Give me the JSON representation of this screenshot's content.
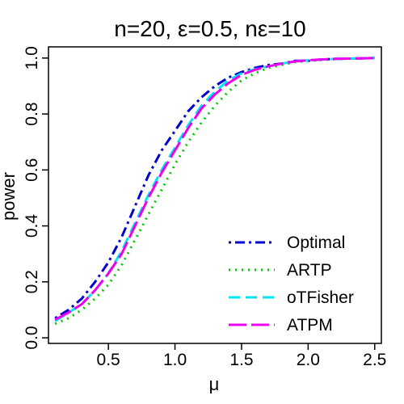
{
  "chart_data": {
    "type": "line",
    "title": "n=20, ε=0.5, nε=10",
    "xlabel": "μ",
    "ylabel": "power",
    "xlim": [
      0.05,
      2.55
    ],
    "ylim": [
      -0.02,
      1.04
    ],
    "xticks": [
      0.5,
      1.0,
      1.5,
      2.0,
      2.5
    ],
    "xtick_labels": [
      "0.5",
      "1.0",
      "1.5",
      "2.0",
      "2.5"
    ],
    "yticks": [
      0.0,
      0.2,
      0.4,
      0.6,
      0.8,
      1.0
    ],
    "ytick_labels": [
      "0.0",
      "0.2",
      "0.4",
      "0.6",
      "0.8",
      "1.0"
    ],
    "grid": false,
    "legend_position": "bottom-right",
    "x": [
      0.1,
      0.2,
      0.3,
      0.4,
      0.5,
      0.6,
      0.7,
      0.8,
      0.9,
      1.0,
      1.1,
      1.2,
      1.3,
      1.4,
      1.5,
      1.6,
      1.7,
      1.8,
      1.9,
      2.0,
      2.1,
      2.2,
      2.3,
      2.4,
      2.5
    ],
    "series": [
      {
        "name": "Optimal",
        "color": "#0000cd",
        "style": "dot-dash",
        "values": [
          0.07,
          0.1,
          0.14,
          0.2,
          0.27,
          0.36,
          0.47,
          0.58,
          0.67,
          0.74,
          0.81,
          0.86,
          0.9,
          0.93,
          0.95,
          0.965,
          0.975,
          0.98,
          0.99,
          0.99,
          0.995,
          0.997,
          0.998,
          0.999,
          1.0
        ]
      },
      {
        "name": "ARTP",
        "color": "#00c800",
        "style": "dotted",
        "values": [
          0.05,
          0.07,
          0.1,
          0.14,
          0.19,
          0.26,
          0.35,
          0.44,
          0.53,
          0.62,
          0.7,
          0.77,
          0.83,
          0.88,
          0.92,
          0.945,
          0.965,
          0.975,
          0.985,
          0.99,
          0.993,
          0.996,
          0.998,
          0.999,
          1.0
        ]
      },
      {
        "name": "oTFisher",
        "color": "#00e5ee",
        "style": "dashed",
        "values": [
          0.06,
          0.09,
          0.12,
          0.17,
          0.23,
          0.31,
          0.41,
          0.51,
          0.6,
          0.68,
          0.76,
          0.83,
          0.88,
          0.92,
          0.945,
          0.96,
          0.97,
          0.98,
          0.988,
          0.992,
          0.995,
          0.997,
          0.998,
          0.999,
          1.0
        ]
      },
      {
        "name": "ATPM",
        "color": "#ee00ee",
        "style": "long-dash",
        "values": [
          0.065,
          0.09,
          0.12,
          0.17,
          0.23,
          0.3,
          0.4,
          0.5,
          0.59,
          0.67,
          0.75,
          0.82,
          0.87,
          0.91,
          0.94,
          0.958,
          0.97,
          0.98,
          0.988,
          0.992,
          0.995,
          0.997,
          0.998,
          0.999,
          1.0
        ]
      }
    ]
  }
}
